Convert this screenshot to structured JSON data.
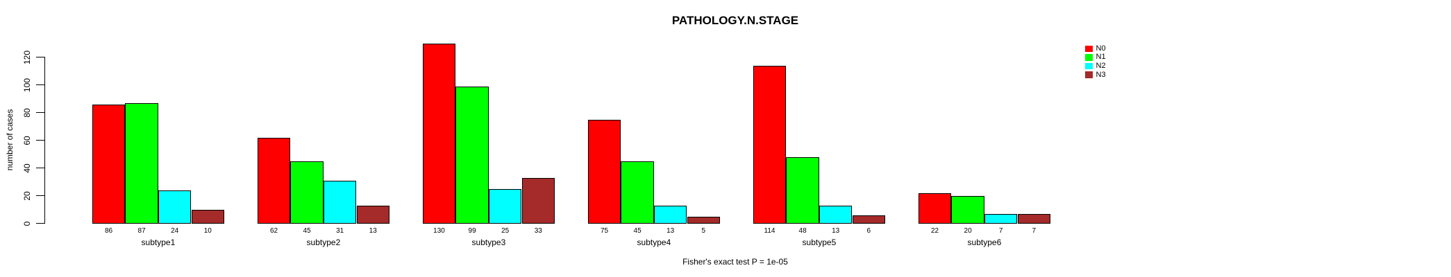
{
  "title": "PATHOLOGY.N.STAGE",
  "caption": "Fisher's exact test P = 1e-05",
  "ylabel": "number of cases",
  "legend": {
    "items": [
      {
        "label": "N0",
        "color": "#FF0000"
      },
      {
        "label": "N1",
        "color": "#00FF00"
      },
      {
        "label": "N2",
        "color": "#00FFFF"
      },
      {
        "label": "N3",
        "color": "#A52A2A"
      }
    ]
  },
  "chart_data": {
    "type": "bar",
    "title": "PATHOLOGY.N.STAGE",
    "annotation": "Fisher's exact test P = 1e-05",
    "ylabel": "number of cases",
    "xlabel": "",
    "categories": [
      "subtype1",
      "subtype2",
      "subtype3",
      "subtype4",
      "subtype5",
      "subtype6"
    ],
    "series": [
      {
        "name": "N0",
        "color": "#FF0000",
        "values": [
          86,
          62,
          130,
          75,
          114,
          22
        ]
      },
      {
        "name": "N1",
        "color": "#00FF00",
        "values": [
          87,
          45,
          99,
          45,
          48,
          20
        ]
      },
      {
        "name": "N2",
        "color": "#00FFFF",
        "values": [
          24,
          31,
          25,
          13,
          13,
          7
        ]
      },
      {
        "name": "N3",
        "color": "#A52A2A",
        "values": [
          10,
          13,
          33,
          5,
          6,
          7
        ]
      }
    ],
    "bar_value_labels": true,
    "yticks": [
      0,
      20,
      40,
      60,
      80,
      100,
      120
    ],
    "ylim": [
      0,
      130
    ],
    "grid": false,
    "legend_position": "top-right-outside",
    "bar_border_color": "#000000",
    "background": "#FFFFFF"
  }
}
